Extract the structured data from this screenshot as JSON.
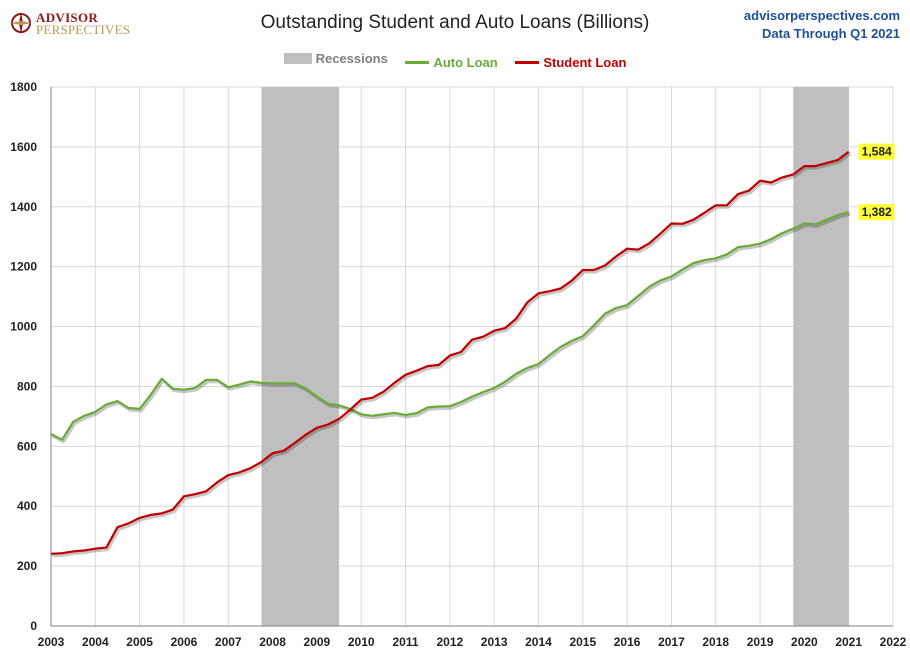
{
  "header": {
    "title": "Outstanding Student and Auto Loans (Billions)",
    "logo_line1": "ADVISOR",
    "logo_line2": "PERSPECTIVES",
    "source_site": "advisorperspectives.com",
    "source_note": "Data Through Q1 2021"
  },
  "legend": {
    "recessions": "Recessions",
    "auto": "Auto Loan",
    "student": "Student Loan"
  },
  "colors": {
    "auto": "#6aaa3a",
    "student": "#c00000",
    "recession": "#bfbfbf",
    "callout": "#ffff33",
    "legend_recession_text": "#808080"
  },
  "chart_data": {
    "type": "line",
    "title": "Outstanding Student and Auto Loans (Billions)",
    "xlabel": "",
    "ylabel": "",
    "xlim": [
      2003,
      2022
    ],
    "ylim": [
      0,
      1800
    ],
    "x_ticks": [
      2003,
      2004,
      2005,
      2006,
      2007,
      2008,
      2009,
      2010,
      2011,
      2012,
      2013,
      2014,
      2015,
      2016,
      2017,
      2018,
      2019,
      2020,
      2021,
      2022
    ],
    "y_ticks": [
      0,
      200,
      400,
      600,
      800,
      1000,
      1200,
      1400,
      1600,
      1800
    ],
    "y_tick_labels": [
      "0",
      "200",
      "400",
      "600",
      "800",
      "1000",
      "1200",
      "1400",
      "1600",
      "1800"
    ],
    "grid": true,
    "legend_position": "top",
    "recessions": [
      {
        "start": 2007.75,
        "end": 2009.5
      },
      {
        "start": 2019.75,
        "end": 2021.0
      }
    ],
    "x": [
      2003.0,
      2003.25,
      2003.5,
      2003.75,
      2004.0,
      2004.25,
      2004.5,
      2004.75,
      2005.0,
      2005.25,
      2005.5,
      2005.75,
      2006.0,
      2006.25,
      2006.5,
      2006.75,
      2007.0,
      2007.25,
      2007.5,
      2007.75,
      2008.0,
      2008.25,
      2008.5,
      2008.75,
      2009.0,
      2009.25,
      2009.5,
      2009.75,
      2010.0,
      2010.25,
      2010.5,
      2010.75,
      2011.0,
      2011.25,
      2011.5,
      2011.75,
      2012.0,
      2012.25,
      2012.5,
      2012.75,
      2013.0,
      2013.25,
      2013.5,
      2013.75,
      2014.0,
      2014.25,
      2014.5,
      2014.75,
      2015.0,
      2015.25,
      2015.5,
      2015.75,
      2016.0,
      2016.25,
      2016.5,
      2016.75,
      2017.0,
      2017.25,
      2017.5,
      2017.75,
      2018.0,
      2018.25,
      2018.5,
      2018.75,
      2019.0,
      2019.25,
      2019.5,
      2019.75,
      2020.0,
      2020.25,
      2020.5,
      2020.75,
      2021.0
    ],
    "series": [
      {
        "name": "Auto Loan",
        "values": [
          641,
          622,
          682,
          702,
          715,
          740,
          751,
          728,
          725,
          772,
          826,
          792,
          789,
          795,
          822,
          822,
          797,
          806,
          817,
          812,
          810,
          810,
          810,
          793,
          766,
          742,
          737,
          725,
          707,
          702,
          707,
          712,
          705,
          711,
          730,
          733,
          734,
          748,
          766,
          781,
          795,
          816,
          843,
          862,
          875,
          905,
          932,
          952,
          968,
          1004,
          1043,
          1062,
          1072,
          1102,
          1133,
          1154,
          1167,
          1191,
          1212,
          1222,
          1228,
          1241,
          1265,
          1270,
          1277,
          1292,
          1312,
          1327,
          1344,
          1341,
          1357,
          1372,
          1382
        ]
      },
      {
        "name": "Student Loan",
        "values": [
          241,
          243,
          249,
          252,
          258,
          262,
          330,
          343,
          361,
          371,
          376,
          389,
          433,
          440,
          450,
          480,
          504,
          513,
          527,
          548,
          577,
          585,
          611,
          639,
          662,
          673,
          692,
          722,
          756,
          762,
          782,
          812,
          839,
          853,
          868,
          872,
          903,
          915,
          956,
          966,
          986,
          995,
          1027,
          1081,
          1111,
          1118,
          1127,
          1153,
          1189,
          1189,
          1204,
          1234,
          1260,
          1257,
          1278,
          1310,
          1344,
          1343,
          1357,
          1381,
          1405,
          1405,
          1442,
          1454,
          1487,
          1481,
          1498,
          1508,
          1536,
          1536,
          1546,
          1556,
          1584
        ]
      }
    ],
    "end_labels": [
      "1,584",
      "1,382"
    ]
  }
}
